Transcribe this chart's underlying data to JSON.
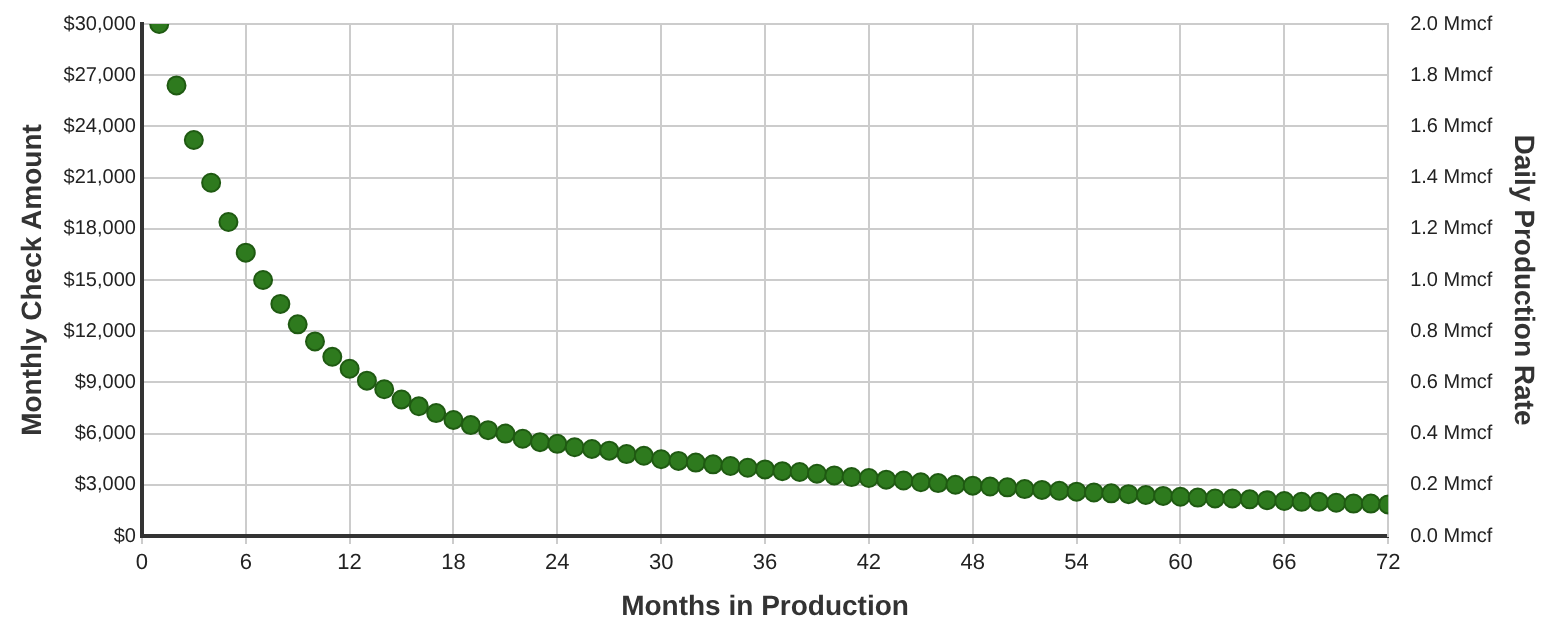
{
  "chart_data": {
    "type": "scatter",
    "xlabel": "Months in Production",
    "ylabel": "Monthly Check Amount",
    "y2label": "Daily Production Rate",
    "x": [
      1,
      2,
      3,
      4,
      5,
      6,
      7,
      8,
      9,
      10,
      11,
      12,
      13,
      14,
      15,
      16,
      17,
      18,
      19,
      20,
      21,
      22,
      23,
      24,
      25,
      26,
      27,
      28,
      29,
      30,
      31,
      32,
      33,
      34,
      35,
      36,
      37,
      38,
      39,
      40,
      41,
      42,
      43,
      44,
      45,
      46,
      47,
      48,
      49,
      50,
      51,
      52,
      53,
      54,
      55,
      56,
      57,
      58,
      59,
      60,
      61,
      62,
      63,
      64,
      65,
      66,
      67,
      68,
      69,
      70,
      71,
      72
    ],
    "series": [
      {
        "color": "#2e7a1e",
        "values": [
          30000,
          26400,
          23200,
          20700,
          18400,
          16600,
          15000,
          13600,
          12400,
          11400,
          10500,
          9800,
          9100,
          8600,
          8000,
          7600,
          7200,
          6800,
          6500,
          6200,
          6000,
          5700,
          5500,
          5400,
          5200,
          5100,
          5000,
          4800,
          4700,
          4500,
          4400,
          4300,
          4200,
          4100,
          4000,
          3900,
          3800,
          3750,
          3650,
          3550,
          3450,
          3400,
          3300,
          3250,
          3150,
          3100,
          3000,
          2950,
          2900,
          2850,
          2750,
          2700,
          2650,
          2600,
          2550,
          2500,
          2450,
          2400,
          2350,
          2300,
          2250,
          2200,
          2200,
          2150,
          2100,
          2050,
          2000,
          2000,
          1950,
          1900,
          1900,
          1850
        ]
      }
    ],
    "xlim": [
      0,
      72
    ],
    "xticks": [
      0,
      6,
      12,
      18,
      24,
      30,
      36,
      42,
      48,
      54,
      60,
      66,
      72
    ],
    "ylim": [
      0,
      30000
    ],
    "yticks": [
      {
        "value": 0,
        "label": "$0"
      },
      {
        "value": 3000,
        "label": "$3,000"
      },
      {
        "value": 6000,
        "label": "$6,000"
      },
      {
        "value": 9000,
        "label": "$9,000"
      },
      {
        "value": 12000,
        "label": "$12,000"
      },
      {
        "value": 15000,
        "label": "$15,000"
      },
      {
        "value": 18000,
        "label": "$18,000"
      },
      {
        "value": 21000,
        "label": "$21,000"
      },
      {
        "value": 24000,
        "label": "$24,000"
      },
      {
        "value": 27000,
        "label": "$27,000"
      },
      {
        "value": 30000,
        "label": "$30,000"
      }
    ],
    "y2lim": [
      0,
      2
    ],
    "y2ticks": [
      {
        "value": 0,
        "label": "0.0 Mmcf"
      },
      {
        "value": 0.2,
        "label": "0.2 Mmcf"
      },
      {
        "value": 0.4,
        "label": "0.4 Mmcf"
      },
      {
        "value": 0.6,
        "label": "0.6 Mmcf"
      },
      {
        "value": 0.8,
        "label": "0.8 Mmcf"
      },
      {
        "value": 1,
        "label": "1.0 Mmcf"
      },
      {
        "value": 1.2,
        "label": "1.2 Mmcf"
      },
      {
        "value": 1.4,
        "label": "1.4 Mmcf"
      },
      {
        "value": 1.6,
        "label": "1.6 Mmcf"
      },
      {
        "value": 1.8,
        "label": "1.8 Mmcf"
      },
      {
        "value": 2,
        "label": "2.0 Mmcf"
      }
    ],
    "grid": true,
    "legend": false,
    "marker": "circle"
  }
}
